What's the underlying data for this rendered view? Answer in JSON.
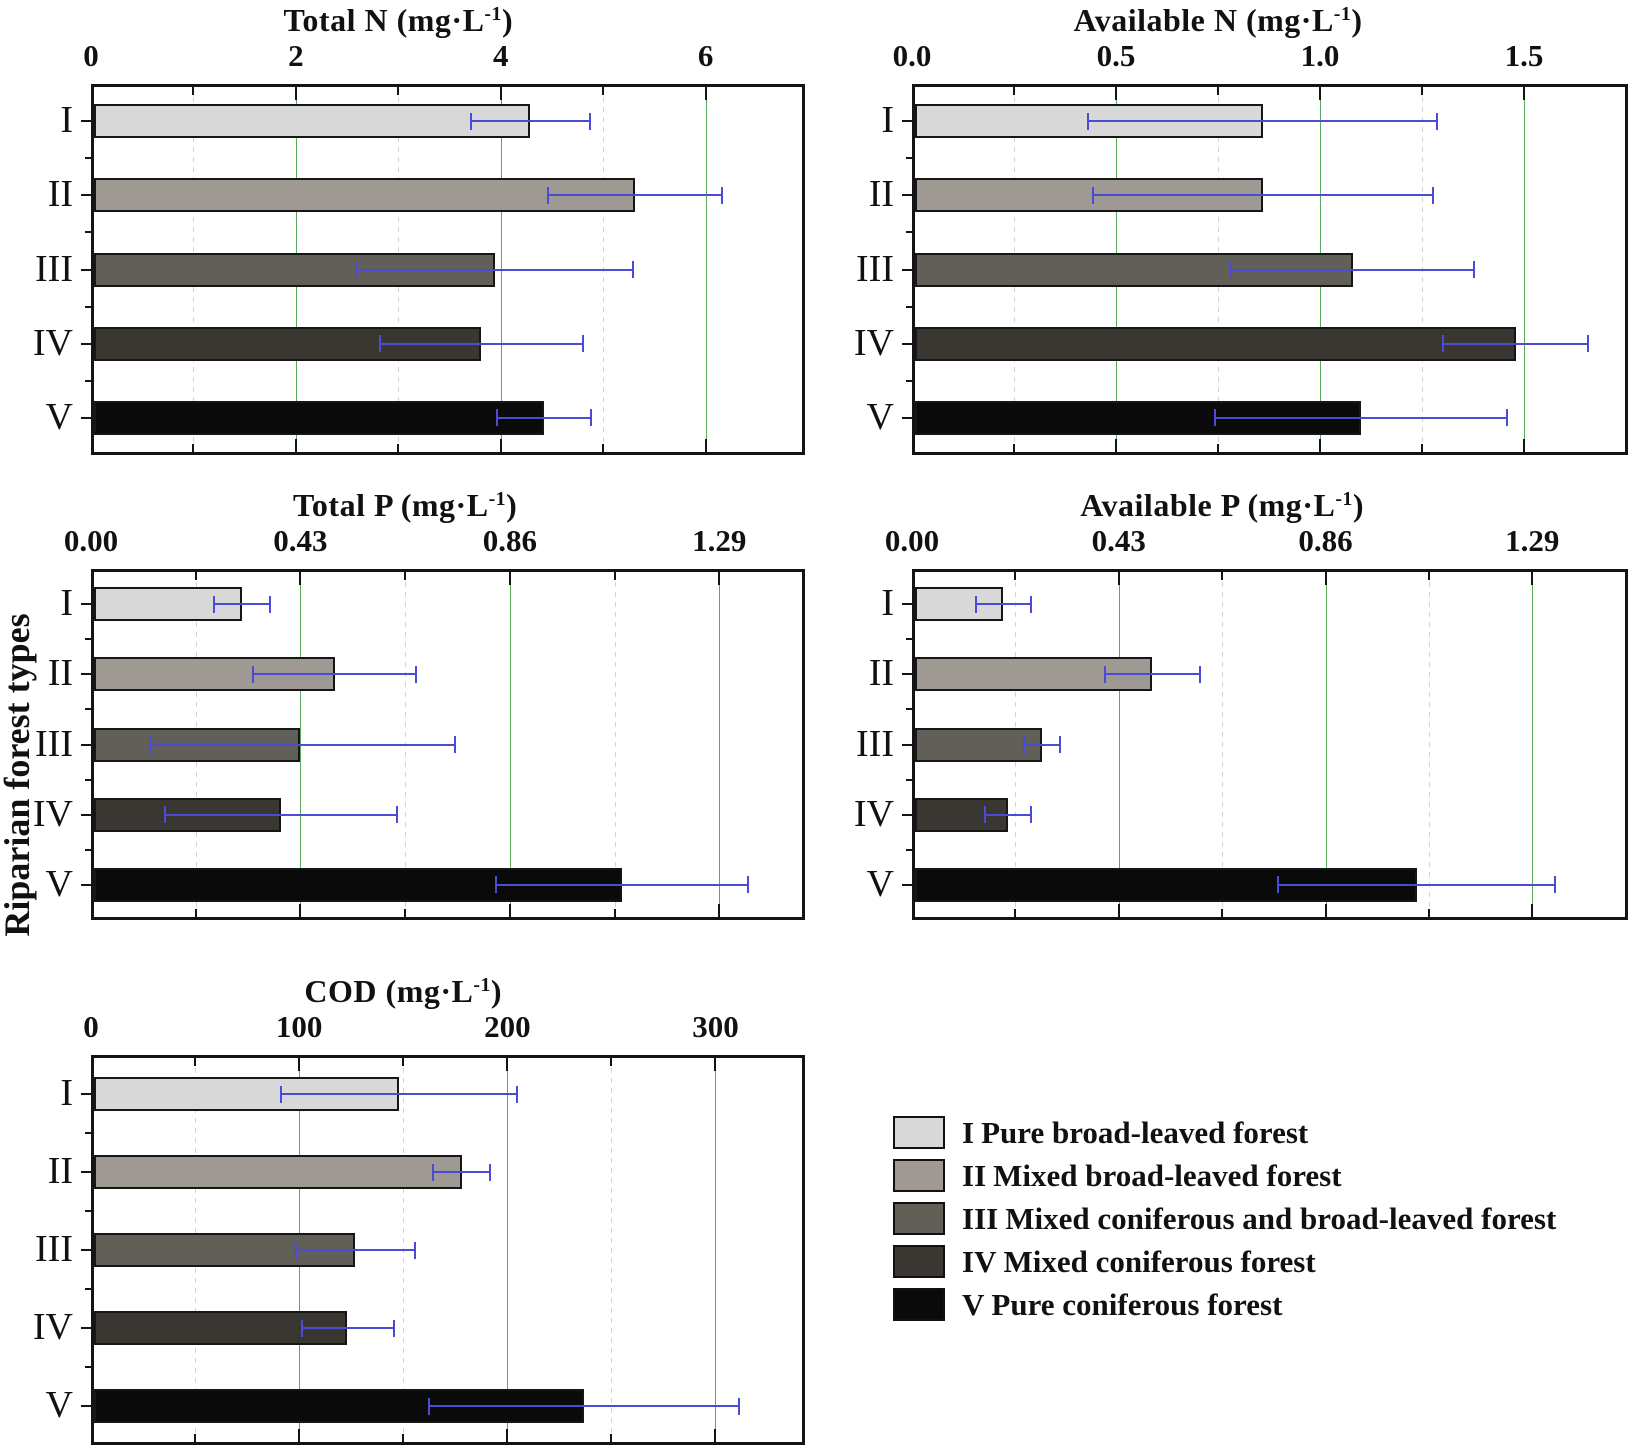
{
  "y_axis_label": "Riparian forest types",
  "categories": [
    "I",
    "II",
    "III",
    "IV",
    "V"
  ],
  "colors": {
    "series": [
      "#d8d8d8",
      "#9e9a93",
      "#625f59",
      "#3a3733",
      "#0a0a0a"
    ],
    "error_bar": "#4b4bd4",
    "grid_major": "#5aa85a",
    "grid_minor": "#d2d2d2",
    "frame": "#141414"
  },
  "chart_data": [
    {
      "id": "total-n",
      "type": "bar",
      "orientation": "horizontal",
      "title": {
        "base": "Total N (mg·L",
        "sup": "-1",
        "tail": ")"
      },
      "categories": [
        "I",
        "II",
        "III",
        "IV",
        "V"
      ],
      "axis": {
        "max": 6.97,
        "major_values": [
          0,
          2,
          4,
          6
        ],
        "major_labels": [
          "0",
          "2",
          "4",
          "6"
        ],
        "minor_values": [
          1,
          3,
          5
        ]
      },
      "values": [
        4.29,
        5.31,
        3.94,
        3.81,
        4.42
      ],
      "err_lo": [
        3.7,
        4.45,
        2.58,
        2.81,
        3.95
      ],
      "err_hi": [
        4.88,
        6.17,
        5.3,
        4.81,
        4.89
      ]
    },
    {
      "id": "available-n",
      "type": "bar",
      "orientation": "horizontal",
      "title": {
        "base": "Available N (mg·L",
        "sup": "-1",
        "tail": ")"
      },
      "categories": [
        "I",
        "II",
        "III",
        "IV",
        "V"
      ],
      "axis": {
        "max": 1.755,
        "major_values": [
          0,
          0.5,
          1.0,
          1.5
        ],
        "major_labels": [
          "0.0",
          "0.5",
          "1.0",
          "1.5"
        ],
        "minor_values": [
          0.25,
          0.75,
          1.25
        ]
      },
      "values": [
        0.86,
        0.86,
        1.08,
        1.48,
        1.1
      ],
      "err_lo": [
        0.43,
        0.44,
        0.78,
        1.3,
        0.74
      ],
      "err_hi": [
        1.29,
        1.28,
        1.38,
        1.66,
        1.46
      ]
    },
    {
      "id": "total-p",
      "type": "bar",
      "orientation": "horizontal",
      "title": {
        "base": "Total P (mg·L",
        "sup": "-1",
        "tail": ")"
      },
      "categories": [
        "I",
        "II",
        "III",
        "IV",
        "V"
      ],
      "axis": {
        "max": 1.466,
        "major_values": [
          0,
          0.43,
          0.86,
          1.29
        ],
        "major_labels": [
          "0.00",
          "0.43",
          "0.86",
          "1.29"
        ],
        "minor_values": [
          0.215,
          0.645,
          1.075
        ]
      },
      "values": [
        0.31,
        0.5,
        0.43,
        0.39,
        1.09
      ],
      "err_lo": [
        0.25,
        0.33,
        0.12,
        0.15,
        0.83
      ],
      "err_hi": [
        0.37,
        0.67,
        0.75,
        0.63,
        1.35
      ]
    },
    {
      "id": "available-p",
      "type": "bar",
      "orientation": "horizontal",
      "title": {
        "base": "Available P (mg·L",
        "sup": "-1",
        "tail": ")"
      },
      "categories": [
        "I",
        "II",
        "III",
        "IV",
        "V"
      ],
      "axis": {
        "max": 1.489,
        "major_values": [
          0,
          0.43,
          0.86,
          1.29
        ],
        "major_labels": [
          "0.00",
          "0.43",
          "0.86",
          "1.29"
        ],
        "minor_values": [
          0.215,
          0.645,
          1.075
        ]
      },
      "values": [
        0.19,
        0.5,
        0.27,
        0.2,
        1.05
      ],
      "err_lo": [
        0.13,
        0.4,
        0.23,
        0.15,
        0.76
      ],
      "err_hi": [
        0.25,
        0.6,
        0.31,
        0.25,
        1.34
      ]
    },
    {
      "id": "cod",
      "type": "bar",
      "orientation": "horizontal",
      "title": {
        "base": "COD  (mg·L",
        "sup": "-1",
        "tail": ")"
      },
      "categories": [
        "I",
        "II",
        "III",
        "IV",
        "V"
      ],
      "axis": {
        "max": 343,
        "major_values": [
          0,
          100,
          200,
          300
        ],
        "major_labels": [
          "0",
          "100",
          "200",
          "300"
        ],
        "minor_values": [
          50,
          150,
          250
        ]
      },
      "values": [
        148,
        178,
        127,
        123,
        237
      ],
      "err_lo": [
        91,
        164,
        98,
        101,
        162
      ],
      "err_hi": [
        205,
        192,
        156,
        146,
        312
      ]
    }
  ],
  "legend": {
    "entries": [
      {
        "numeral": "I",
        "label": "Pure broad-leaved forest"
      },
      {
        "numeral": "II",
        "label": "Mixed broad-leaved forest"
      },
      {
        "numeral": "III",
        "label": "Mixed coniferous and broad-leaved forest"
      },
      {
        "numeral": "IV",
        "label": "Mixed coniferous forest"
      },
      {
        "numeral": "V",
        "label": "Pure coniferous forest"
      }
    ]
  }
}
